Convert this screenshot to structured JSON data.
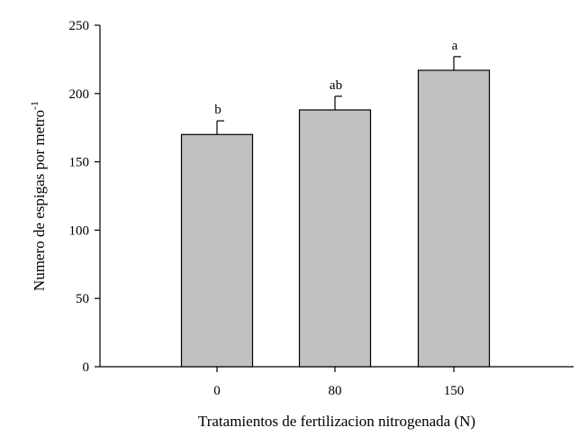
{
  "chart_data": {
    "type": "bar",
    "categories": [
      "0",
      "80",
      "150"
    ],
    "values": [
      170,
      188,
      217
    ],
    "errors": [
      10,
      10,
      10
    ],
    "significance_labels": [
      "b",
      "ab",
      "a"
    ],
    "title": "",
    "xlabel": "Tratamientos de fertilizacion nitrogenada (N)",
    "ylabel_main": "Numero de espigas por metro",
    "ylabel_superscript": "-1",
    "ylim": [
      0,
      250
    ],
    "yticks": [
      "0",
      "50",
      "100",
      "150",
      "200",
      "250"
    ],
    "grid": false,
    "legend": "none",
    "bar_color": "#c0c0c0",
    "outline_color": "#000000"
  }
}
